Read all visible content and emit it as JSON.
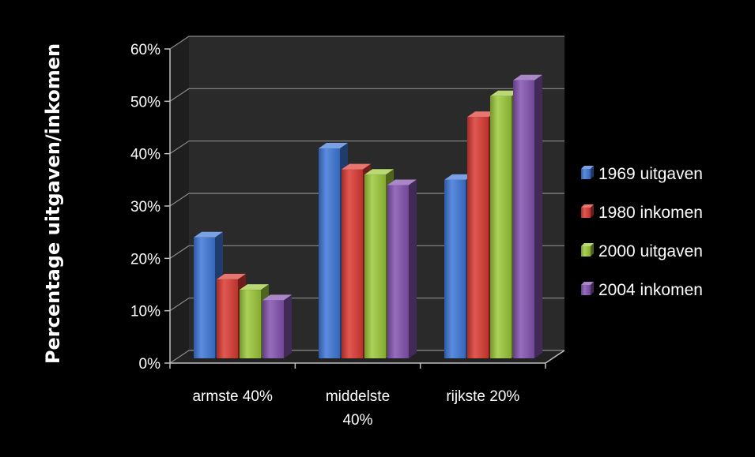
{
  "chart_data": {
    "type": "bar",
    "title": "",
    "xlabel": "",
    "ylabel": "Percentage uitgaven/inkomen",
    "ylim": [
      0,
      60
    ],
    "yticks": [
      "0%",
      "10%",
      "20%",
      "30%",
      "40%",
      "50%",
      "60%"
    ],
    "categories": [
      {
        "lines": [
          "armste 40%"
        ]
      },
      {
        "lines": [
          "middelste",
          "40%"
        ]
      },
      {
        "lines": [
          "rijkste 20%"
        ]
      }
    ],
    "series": [
      {
        "name": "1969 uitgaven",
        "values": [
          24,
          41,
          35
        ],
        "color": "#3f78d8"
      },
      {
        "name": "1980 inkomen",
        "values": [
          16,
          37,
          47
        ],
        "color": "#dc3b34"
      },
      {
        "name": "2000 uitgaven",
        "values": [
          14,
          36,
          51
        ],
        "color": "#9dc93a"
      },
      {
        "name": "2004 inkomen",
        "values": [
          12,
          34,
          54
        ],
        "color": "#8453b0"
      }
    ],
    "grid": true,
    "legend": "right",
    "background": "#000000",
    "wall_color": "#2a2a2a"
  }
}
